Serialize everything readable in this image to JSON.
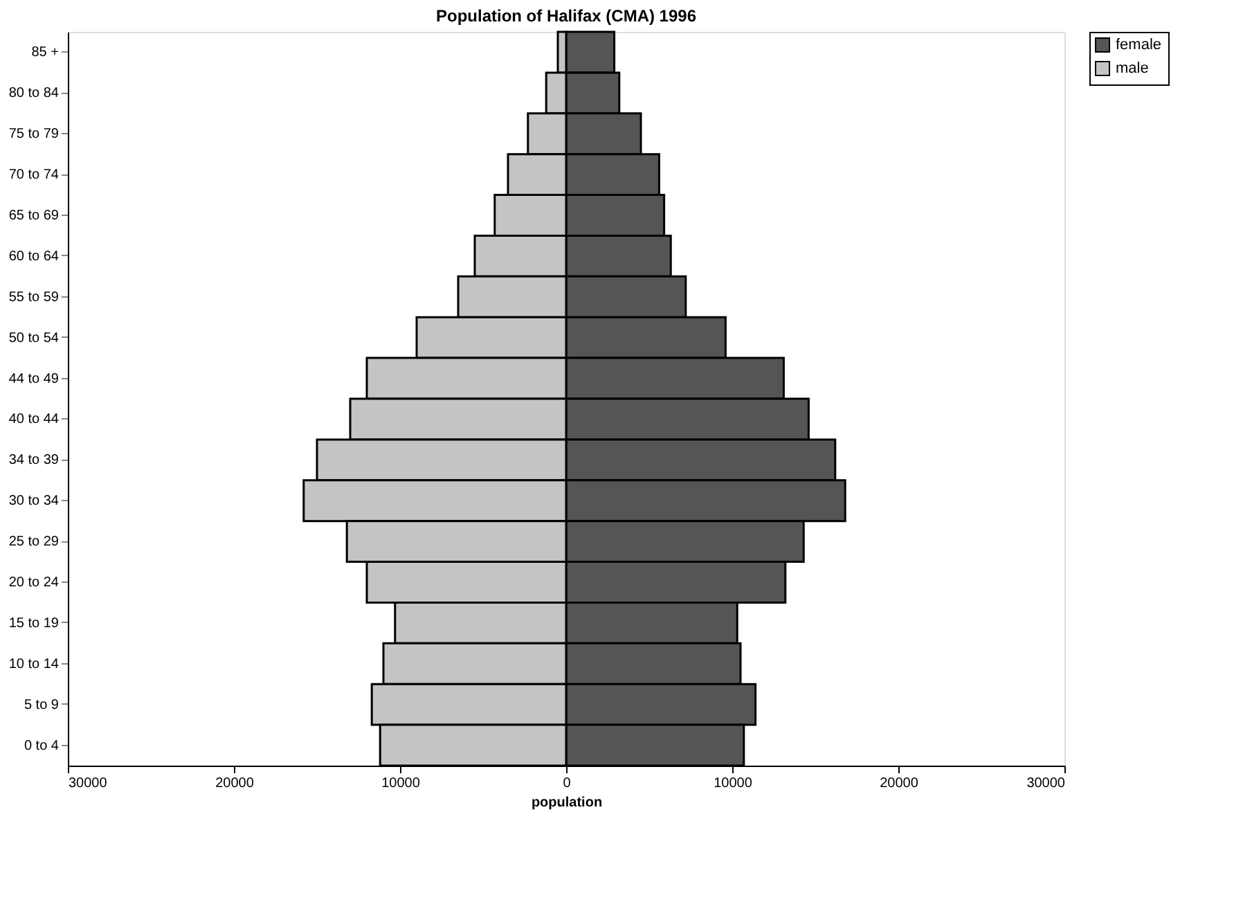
{
  "chart_data": {
    "type": "bar",
    "orientation": "horizontal",
    "title": "Population of Halifax (CMA) 1996",
    "xlabel": "population",
    "categories": [
      "85 +",
      "80 to 84",
      "75 to 79",
      "70 to 74",
      "65 to 69",
      "60 to 64",
      "55 to 59",
      "50 to 54",
      "44 to 49",
      "40 to 44",
      "34 to 39",
      "30 to 34",
      "25 to 29",
      "20 to 24",
      "15 to 19",
      "10 to 14",
      "5 to 9",
      "0 to 4"
    ],
    "series": [
      {
        "name": "female",
        "color": "#555555",
        "values": [
          2900,
          3200,
          4500,
          5600,
          5900,
          6300,
          7200,
          9600,
          13100,
          14600,
          16200,
          16800,
          14300,
          13200,
          10300,
          10500,
          11400,
          10700
        ]
      },
      {
        "name": "male",
        "color": "#c4c4c4",
        "values": [
          -500,
          -1200,
          -2300,
          -3500,
          -4300,
          -5500,
          -6500,
          -9000,
          -12000,
          -13000,
          -15000,
          -15800,
          -13200,
          -12000,
          -10300,
          -11000,
          -11700,
          -11200
        ]
      }
    ],
    "xlim": [
      -30000,
      30000
    ],
    "xticks": [
      {
        "value": -30000,
        "label": "30000"
      },
      {
        "value": -20000,
        "label": "20000"
      },
      {
        "value": -10000,
        "label": "10000"
      },
      0,
      10000,
      20000,
      30000
    ],
    "stacked": true,
    "grid": false,
    "legend": "right"
  }
}
